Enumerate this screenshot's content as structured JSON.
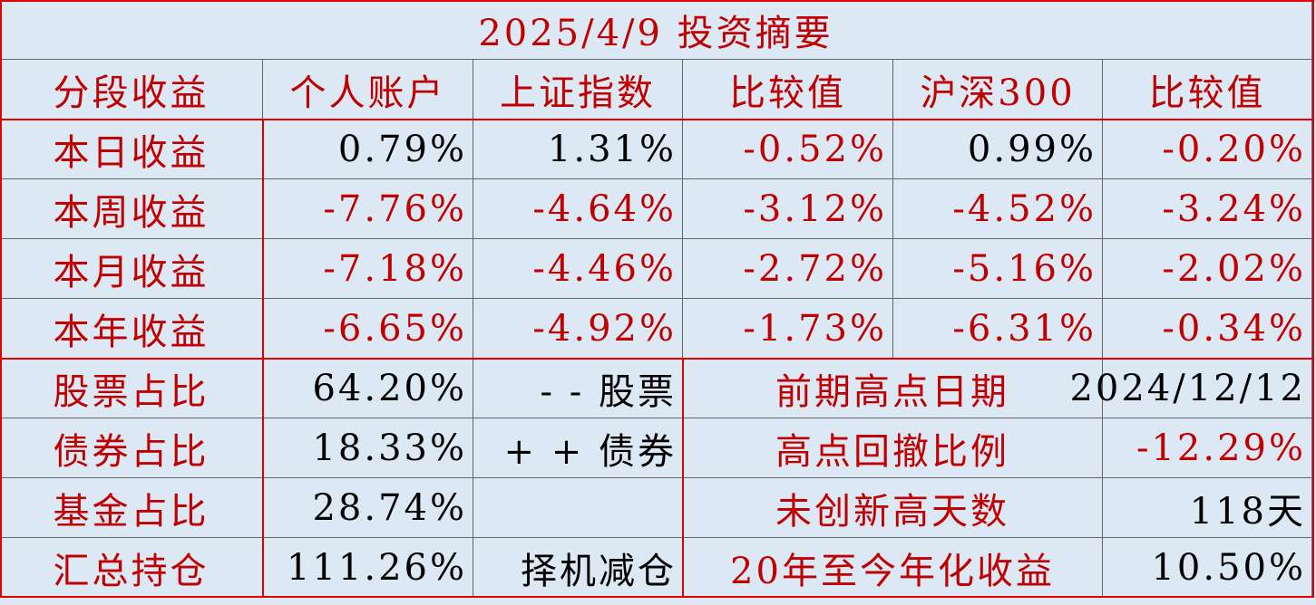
{
  "title": "2025/4/9 投资摘要",
  "header": [
    "分段收益",
    "个人账户",
    "上证指数",
    "比较值",
    "沪深300",
    "比较值"
  ],
  "rows": [
    [
      "本日收益",
      "0.79%",
      "1.31%",
      "-0.52%",
      "0.99%",
      "-0.20%"
    ],
    [
      "本周收益",
      "-7.76%",
      "-4.64%",
      "-3.12%",
      "-4.52%",
      "-3.24%"
    ],
    [
      "本月收益",
      "-7.18%",
      "-4.46%",
      "-2.72%",
      "-5.16%",
      "-2.02%"
    ],
    [
      "本年收益",
      "-6.65%",
      "-4.92%",
      "-1.73%",
      "-6.31%",
      "-0.34%"
    ]
  ],
  "holdings": [
    {
      "label": "股票占比",
      "value": "64.20%",
      "note": "- - 股票",
      "stat": "前期高点日期",
      "stat_value": "2024/12/12"
    },
    {
      "label": "债券占比",
      "value": "18.33%",
      "note": "+ + 债券",
      "stat": "高点回撤比例",
      "stat_value": "-12.29%"
    },
    {
      "label": "基金占比",
      "value": "28.74%",
      "stat": "未创新高天数",
      "stat_value": "118天"
    },
    {
      "label": "汇总持仓",
      "value": "111.26%",
      "note": "择机减仓",
      "stat": "20年至今年化收益",
      "stat_value": "10.50%"
    }
  ]
}
